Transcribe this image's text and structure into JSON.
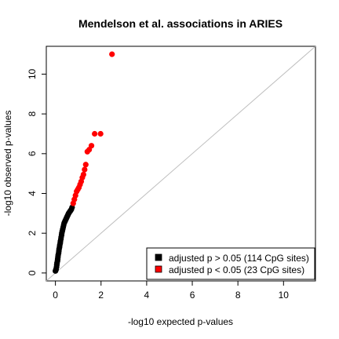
{
  "chart_data": {
    "type": "scatter",
    "title": "Mendelson et al. associations in ARIES",
    "xlabel": "-log10 expected p-values",
    "ylabel": "-log10 observed p-values",
    "xlim": [
      -0.4,
      11.4
    ],
    "ylim": [
      -0.4,
      11.4
    ],
    "x_ticks": [
      0,
      2,
      4,
      6,
      8,
      10
    ],
    "y_ticks": [
      0,
      2,
      4,
      6,
      8,
      10
    ],
    "grid": false,
    "reference_line": "y = x",
    "reference_line_color": "#bebebe",
    "legend_position": "bottom-right",
    "colors": {
      "not_significant": "#000000",
      "significant": "#ff0000"
    },
    "series": [
      {
        "name": "adjusted p > 0.05 (114 CpG sites)",
        "color": "#000000",
        "x": [
          0.0,
          0.02,
          0.03,
          0.05,
          0.06,
          0.07,
          0.09,
          0.1,
          0.11,
          0.12,
          0.14,
          0.15,
          0.16,
          0.18,
          0.19,
          0.21,
          0.22,
          0.24,
          0.25,
          0.27,
          0.28,
          0.3,
          0.32,
          0.34,
          0.36,
          0.38,
          0.4,
          0.42,
          0.44,
          0.46,
          0.48,
          0.5,
          0.52,
          0.54,
          0.56,
          0.58,
          0.61,
          0.64,
          0.67,
          0.7,
          0.73
        ],
        "y": [
          0.1,
          0.15,
          0.2,
          0.3,
          0.4,
          0.5,
          0.6,
          0.7,
          0.8,
          0.9,
          1.0,
          1.1,
          1.2,
          1.3,
          1.4,
          1.5,
          1.6,
          1.7,
          1.8,
          1.9,
          2.0,
          2.1,
          2.2,
          2.3,
          2.4,
          2.5,
          2.55,
          2.6,
          2.65,
          2.7,
          2.75,
          2.8,
          2.85,
          2.9,
          2.95,
          3.0,
          3.05,
          3.1,
          3.15,
          3.2,
          3.3
        ]
      },
      {
        "name": "adjusted p < 0.05 (23 CpG sites)",
        "color": "#ff0000",
        "x": [
          0.78,
          0.83,
          0.88,
          0.93,
          0.98,
          1.03,
          1.08,
          1.13,
          1.18,
          1.23,
          1.28,
          1.33,
          1.4,
          1.48,
          1.58,
          1.72,
          1.98,
          2.48
        ],
        "y": [
          3.5,
          3.7,
          3.9,
          4.1,
          4.2,
          4.3,
          4.45,
          4.6,
          4.8,
          4.95,
          5.2,
          5.45,
          6.1,
          6.2,
          6.4,
          7.0,
          7.0,
          11.0
        ]
      }
    ]
  }
}
